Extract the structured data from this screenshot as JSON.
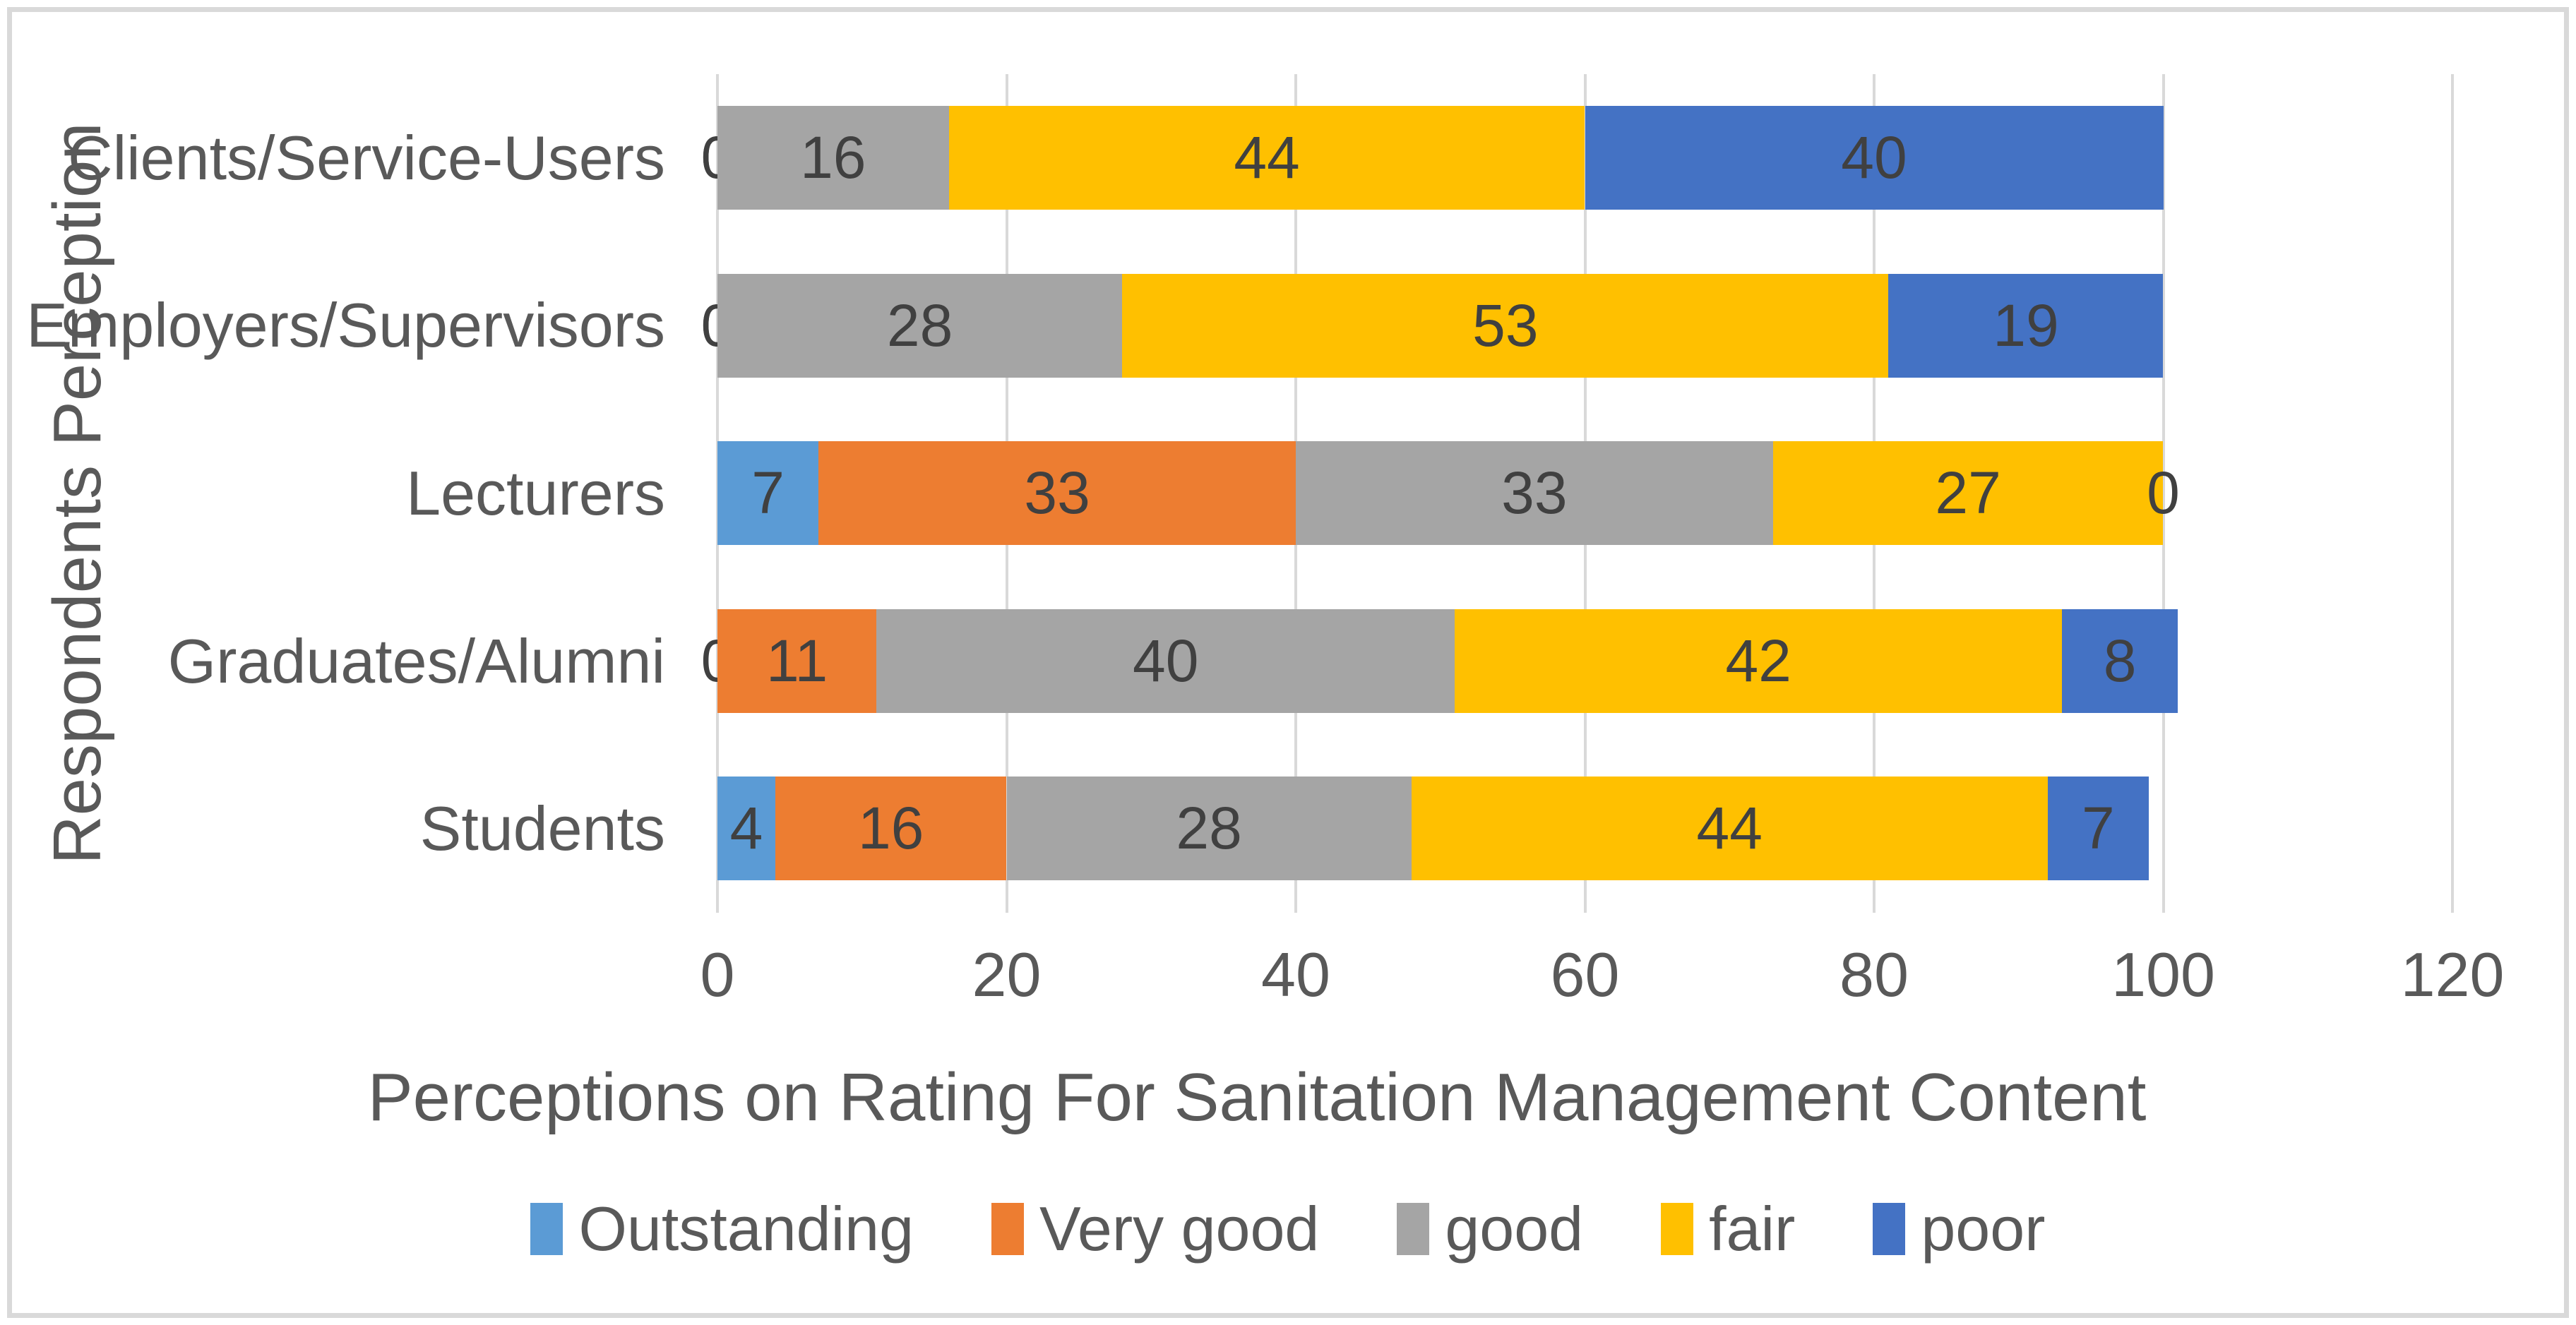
{
  "chart_data": {
    "type": "bar",
    "orientation": "horizontal-stacked",
    "title": "",
    "xlabel": "Perceptions on Rating For Sanitation Management Content",
    "ylabel": "Respondents Perception",
    "xlim": [
      0,
      120
    ],
    "xticks": [
      0,
      20,
      40,
      60,
      80,
      100,
      120
    ],
    "grid": true,
    "legend_position": "bottom",
    "categories": [
      "Clients/Service-Users",
      "Employers/Supervisors",
      "Lecturers",
      "Graduates/Alumni",
      "Students"
    ],
    "series": [
      {
        "name": "Outstanding",
        "color": "#5B9BD5",
        "values": [
          0,
          0,
          7,
          0,
          4
        ]
      },
      {
        "name": "Very good",
        "color": "#ED7D31",
        "values": [
          0,
          0,
          33,
          11,
          16
        ]
      },
      {
        "name": "good",
        "color": "#A5A5A5",
        "values": [
          16,
          28,
          33,
          40,
          28
        ]
      },
      {
        "name": "fair",
        "color": "#FFC000",
        "values": [
          44,
          53,
          27,
          42,
          44
        ]
      },
      {
        "name": "poor",
        "color": "#4472C4",
        "values": [
          40,
          19,
          0,
          8,
          7
        ]
      }
    ],
    "gridline_color": "#D9D9D9",
    "data_label_color": "#404040",
    "axis_text_color": "#595959"
  }
}
